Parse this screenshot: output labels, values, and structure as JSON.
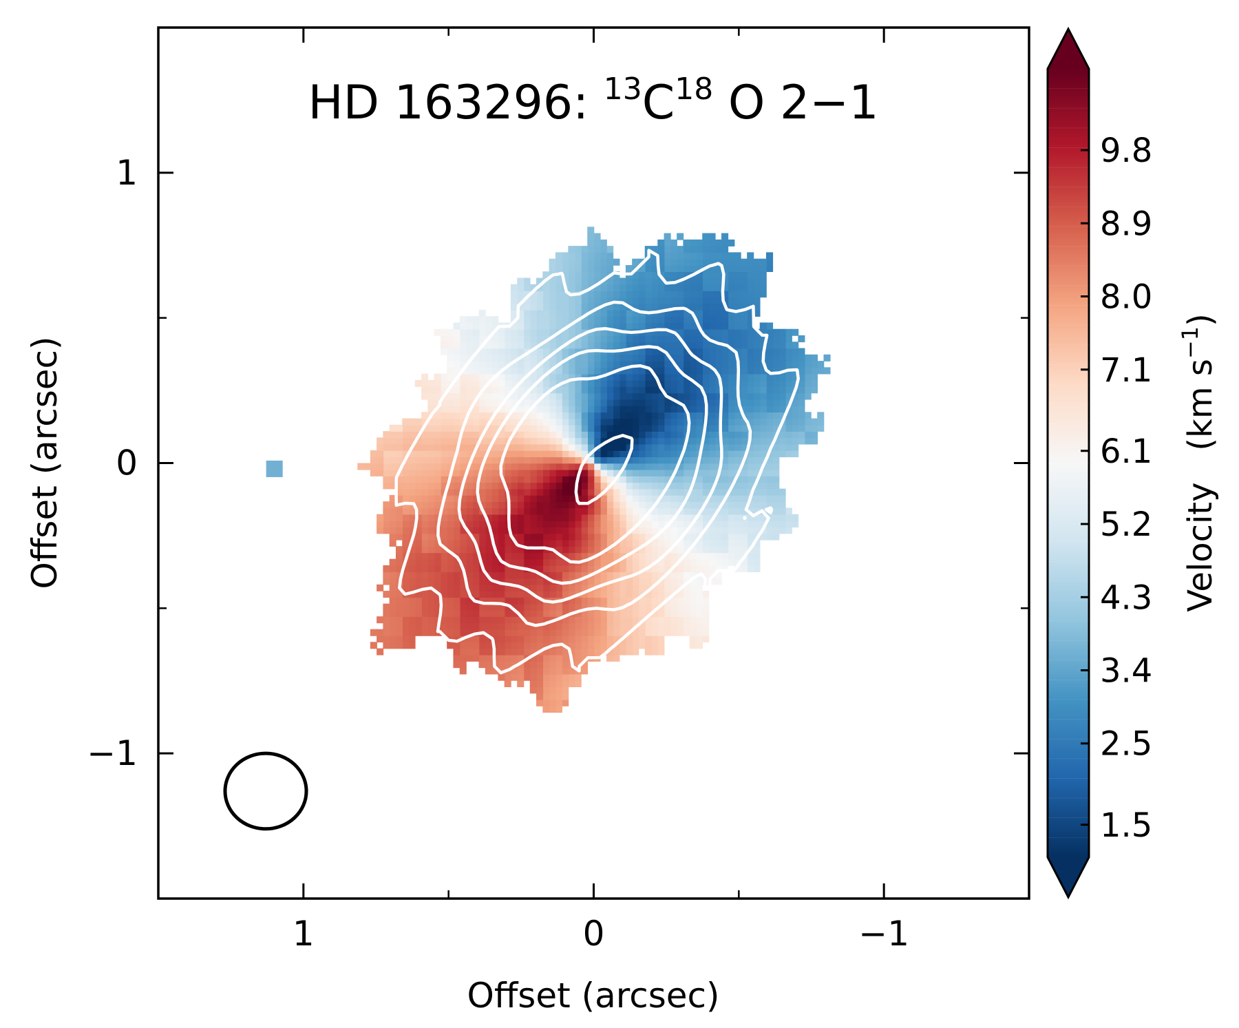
{
  "chart_data": {
    "type": "heatmap",
    "title_parts": {
      "prefix": "HD 163296: ",
      "iso1_sup": "13",
      "iso1": "C",
      "iso2_sup": "18",
      "iso2": "O 2−1"
    },
    "xlabel": "Offset (arcsec)",
    "ylabel": "Offset (arcsec)",
    "xlim": [
      1.5,
      -1.5
    ],
    "ylim": [
      -1.5,
      1.5
    ],
    "x_ticks": [
      1,
      0,
      -1
    ],
    "x_tick_labels": [
      "1",
      "0",
      "−1"
    ],
    "y_ticks": [
      1,
      0,
      -1
    ],
    "y_tick_labels": [
      "1",
      "0",
      "−1"
    ],
    "minor_ticks": [
      0.5,
      -0.5
    ],
    "colorbar": {
      "label_main": "Velocity",
      "label_unit_base": "km s",
      "label_unit_sup": "−1",
      "label_paren_open": "(",
      "label_paren_close": ")",
      "range": [
        1.1,
        10.8
      ],
      "ticks": [
        1.5,
        2.5,
        3.4,
        4.3,
        5.2,
        6.1,
        7.1,
        8.0,
        8.9,
        9.8
      ],
      "tick_labels": [
        "1.5",
        "2.5",
        "3.4",
        "4.3",
        "5.2",
        "6.1",
        "7.1",
        "8.0",
        "8.9",
        "9.8"
      ],
      "colormap": "RdBu_r",
      "colors": [
        "#053061",
        "#2166ac",
        "#4393c3",
        "#92c5de",
        "#d1e5f0",
        "#f7f7f7",
        "#fddbc7",
        "#f4a582",
        "#d6604d",
        "#b2182b",
        "#67001f"
      ]
    },
    "systemic_velocity": 5.8,
    "disk": {
      "center": [
        0.0,
        0.0
      ],
      "position_angle_deg": 132,
      "outer_radius": 0.86,
      "minor_axis_ratio": 0.74
    },
    "contour_levels": [
      0.12,
      0.28,
      0.45,
      0.63,
      0.82
    ],
    "contour_color": "#ffffff",
    "beam": {
      "x": 1.13,
      "y": -1.13,
      "width": 0.28,
      "height": 0.26
    },
    "isolated_pixel": {
      "x": 1.1,
      "y": -0.02,
      "velocity": 3.6
    }
  }
}
